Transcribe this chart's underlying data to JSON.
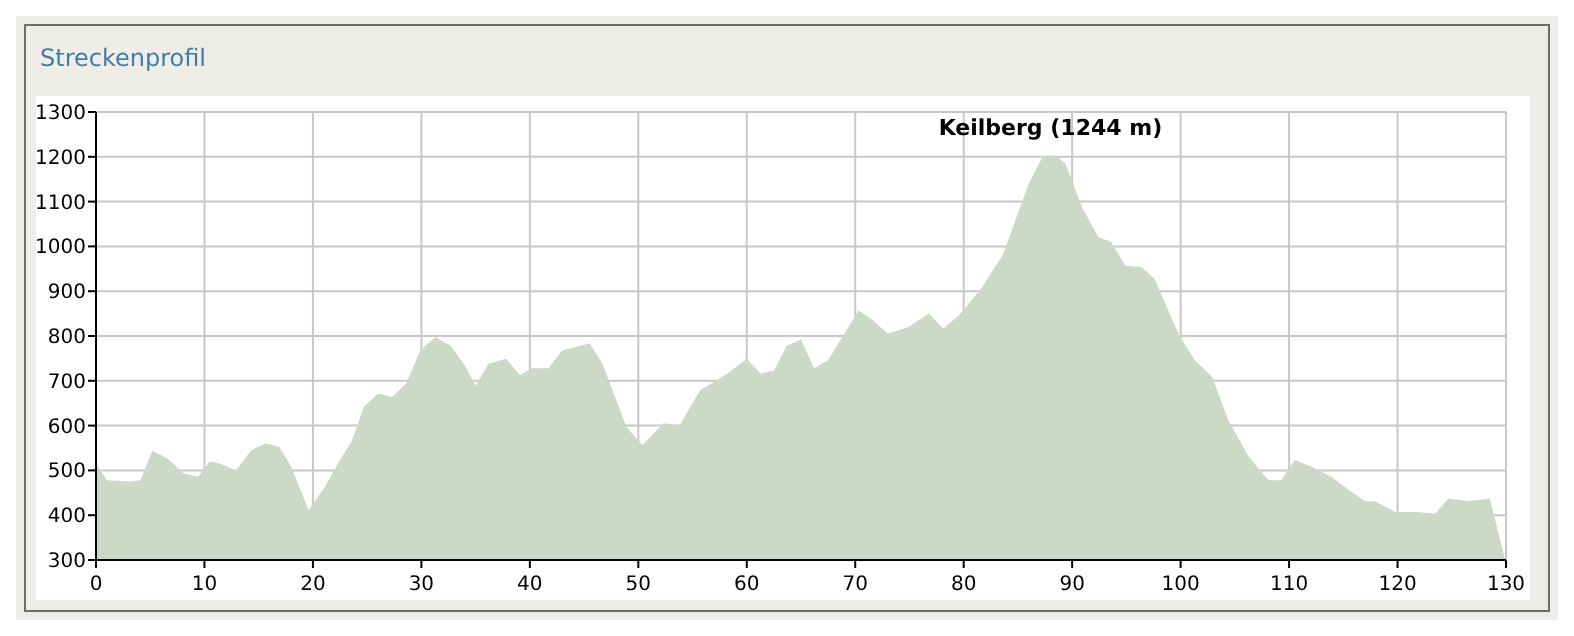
{
  "chart_data": {
    "type": "area",
    "title": "Streckenprofil",
    "grid": true,
    "annotations": [
      {
        "text": "Keilberg (1244 m)",
        "x": 88,
        "y": 1203
      }
    ],
    "xlim": [
      0,
      130
    ],
    "xticks": [
      0,
      10,
      20,
      30,
      40,
      50,
      60,
      70,
      80,
      90,
      100,
      110,
      120,
      130
    ],
    "ylim": [
      300,
      1300
    ],
    "yticks": [
      300,
      400,
      500,
      600,
      700,
      800,
      900,
      1000,
      1100,
      1200,
      1300
    ],
    "series": [
      {
        "color": "#cbd9c6",
        "x": [
          0,
          1,
          3.2,
          4.1,
          5.2,
          6.6,
          8.1,
          9.4,
          10.5,
          11.5,
          12.9,
          14.3,
          15.6,
          16.9,
          18,
          19.6,
          21.1,
          22.3,
          23.6,
          24.7,
          26,
          27.3,
          28.6,
          29.9,
          31.3,
          32.7,
          34.1,
          35,
          36.2,
          37.8,
          39.1,
          40.2,
          41.7,
          43,
          45.5,
          46.7,
          48.9,
          50.4,
          52.3,
          53.8,
          55.7,
          58.2,
          60,
          61.3,
          62.5,
          63.7,
          65,
          66.2,
          67.5,
          70.3,
          71.5,
          73,
          74.9,
          76.8,
          78.1,
          79.6,
          81.7,
          83.6,
          86,
          87.2,
          88.5,
          89.4,
          90.9,
          92.4,
          93.6,
          94.9,
          96.4,
          97.6,
          99.8,
          101.3,
          102.9,
          104.4,
          106.3,
          108.1,
          109.3,
          110.5,
          112.1,
          113.9,
          115.5,
          117,
          117.9,
          119.8,
          121.6,
          123.5,
          124.7,
          126.5,
          128.5,
          129.9
        ],
        "values": [
          515,
          478,
          475,
          478,
          544,
          526,
          493,
          486,
          520,
          515,
          500,
          545,
          560,
          553,
          508,
          411,
          463,
          515,
          567,
          642,
          671,
          664,
          694,
          768,
          798,
          778,
          731,
          689,
          738,
          749,
          713,
          728,
          728,
          768,
          783,
          738,
          597,
          556,
          605,
          600,
          679,
          716,
          749,
          716,
          723,
          778,
          793,
          728,
          746,
          857,
          838,
          805,
          820,
          850,
          816,
          847,
          909,
          981,
          1140,
          1197,
          1203,
          1184,
          1088,
          1021,
          1010,
          957,
          954,
          927,
          805,
          746,
          709,
          612,
          530,
          478,
          478,
          523,
          508,
          486,
          456,
          431,
          431,
          407,
          407,
          404,
          437,
          431,
          437,
          303
        ]
      }
    ]
  }
}
